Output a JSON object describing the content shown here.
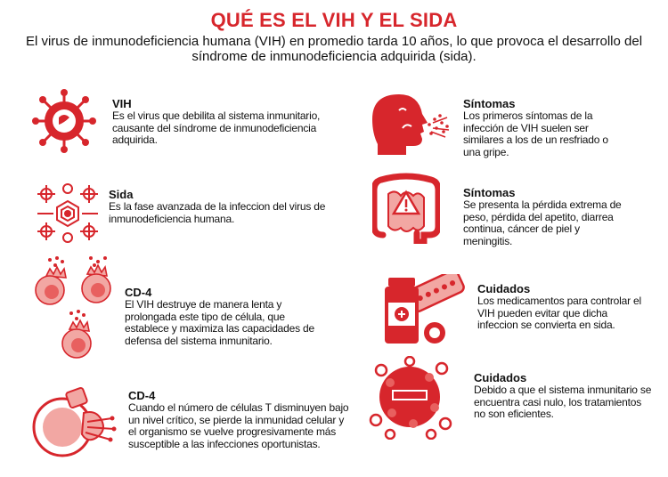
{
  "header": {
    "title": "QUÉ ES EL VIH Y EL SIDA",
    "subtitle": "El virus de inmunodeficiencia humana (VIH) en promedio tarda 10 años, lo que  provoca el desarrollo del síndrome de inmunodeficiencia adquirida (sida)."
  },
  "colors": {
    "accent": "#d7262c",
    "light": "#f2a7a3",
    "mid": "#e8605f"
  },
  "left": [
    {
      "title": "VIH",
      "text": "Es el virus que debilita al sistema inmunitario, causante del síndrome de inmunodeficiencia adquirida.",
      "icon": "virus-icon"
    },
    {
      "title": "Sida",
      "text": "Es la fase avanzada  de la infeccion del virus de inmunodeficiencia humana.",
      "icon": "infected-cells-icon"
    },
    {
      "title": "CD-4",
      "text": "El VIH destruye de manera lenta y prolongada este tipo de célula, que establece y maximiza las capacidades de defensa del sistema inmunitario.",
      "icon": "cd4-cells-icon"
    },
    {
      "title": "CD-4",
      "text": "Cuando el número de células T disminuyen bajo un nivel crítico, se pierde la inmunidad celular y el organismo se vuelve progresivamente más susceptible a las infecciones oportunistas.",
      "icon": "cell-damage-icon"
    }
  ],
  "right": [
    {
      "title": "Síntomas",
      "text": "Los primeros síntomas de la infección de VIH suelen ser similares a los de un resfriado o una gripe.",
      "icon": "sneeze-head-icon"
    },
    {
      "title": "Síntomas",
      "text": "Se presenta la pérdida extrema de peso,  pérdida del apetito, diarrea continua, cáncer de piel y meningitis.",
      "icon": "intestine-warning-icon"
    },
    {
      "title": "Cuidados",
      "text": "Los medicamentos para controlar el VIH pueden evitar que dicha infeccion se convierta en sida.",
      "icon": "medication-icon"
    },
    {
      "title": "Cuidados",
      "text": "Debido a que el sistema inmunitario se encuentra  casi nulo, los tratamientos no  son eficientes.",
      "icon": "weak-cell-icon"
    }
  ]
}
